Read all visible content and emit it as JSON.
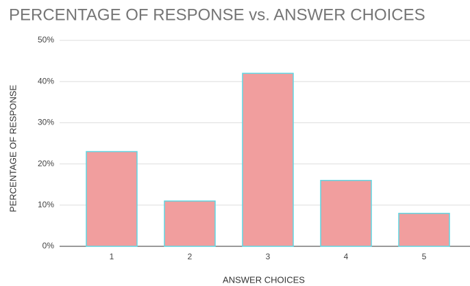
{
  "chart_data": {
    "type": "bar",
    "title": "PERCENTAGE OF RESPONSE vs. ANSWER CHOICES",
    "x_label": "ANSWER CHOICES",
    "y_label": "PERCENTAGE OF RESPONSE",
    "categories": [
      "1",
      "2",
      "3",
      "4",
      "5"
    ],
    "values": [
      23,
      11,
      42,
      16,
      8
    ],
    "color": "#f19e9e",
    "edge_color": "#5fd6e2",
    "ylim": [
      0,
      50
    ],
    "yticks": [
      {
        "value": 0,
        "label": "0%"
      },
      {
        "value": 10,
        "label": "10%"
      },
      {
        "value": 20,
        "label": "20%"
      },
      {
        "value": 30,
        "label": "30%"
      },
      {
        "value": 40,
        "label": "40%"
      },
      {
        "value": 50,
        "label": "50%"
      }
    ],
    "grid": true
  }
}
